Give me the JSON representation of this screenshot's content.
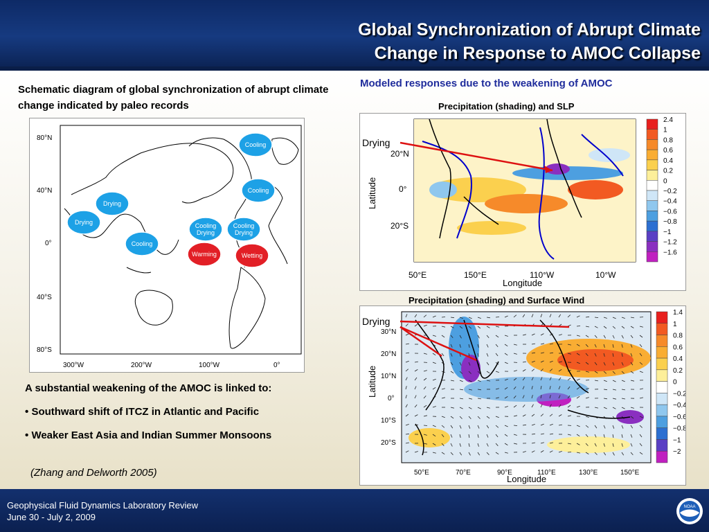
{
  "header": {
    "title_line1": "Global Synchronization of Abrupt Climate",
    "title_line2": "Change in Response to AMOC Collapse"
  },
  "left": {
    "heading": "Schematic diagram of global synchronization of abrupt climate change indicated by paleo records",
    "map": {
      "lat_labels": [
        "80°N",
        "40°N",
        "0°",
        "40°S",
        "80°S"
      ],
      "lon_labels": [
        "300°W",
        "200°W",
        "100°W",
        "0°"
      ],
      "bubbles": [
        {
          "label": "Cooling",
          "color": "#1da1e6"
        },
        {
          "label": "Cooling",
          "color": "#1da1e6"
        },
        {
          "label": "Drying",
          "color": "#1da1e6"
        },
        {
          "label": "Drying",
          "color": "#1da1e6"
        },
        {
          "label": "Cooling",
          "color": "#1da1e6"
        },
        {
          "label": "Cooling Drying",
          "color": "#1da1e6"
        },
        {
          "label": "Cooling Drying",
          "color": "#1da1e6"
        },
        {
          "label": "Warming",
          "color": "#e21f26"
        },
        {
          "label": "Wetting",
          "color": "#e21f26"
        }
      ]
    }
  },
  "right": {
    "heading": "Modeled responses due to the weakening of AMOC",
    "panel1": {
      "title": "Precipitation (shading) and SLP",
      "annotation": "Drying",
      "ylabel": "Latitude",
      "xlabel": "Longitude",
      "lat_labels": [
        "20°N",
        "0°",
        "20°S"
      ],
      "lon_labels": [
        "50°E",
        "150°E",
        "110°W",
        "10°W"
      ],
      "colorbar": [
        {
          "label": "2.4",
          "color": "#e8201e"
        },
        {
          "label": "1",
          "color": "#f25a22"
        },
        {
          "label": "0.8",
          "color": "#f68a2a"
        },
        {
          "label": "0.6",
          "color": "#f9ad33"
        },
        {
          "label": "0.4",
          "color": "#fbd04e"
        },
        {
          "label": "0.2",
          "color": "#fdef9a"
        },
        {
          "label": "0",
          "color": "#ffffff"
        },
        {
          "label": "−0.2",
          "color": "#cfe6f7"
        },
        {
          "label": "−0.4",
          "color": "#8fc7ee"
        },
        {
          "label": "−0.6",
          "color": "#4d9fe0"
        },
        {
          "label": "−0.8",
          "color": "#2c6fd1"
        },
        {
          "label": "−1",
          "color": "#5a3fc4"
        },
        {
          "label": "−1.2",
          "color": "#8a2fc0"
        },
        {
          "label": "−1.6",
          "color": "#c020c0"
        }
      ]
    },
    "panel2": {
      "title": "Precipitation (shading) and Surface Wind",
      "annotation": "Drying",
      "ylabel": "Latitude",
      "xlabel": "Longitude",
      "lat_labels": [
        "30°N",
        "20°N",
        "10°N",
        "0°",
        "10°S",
        "20°S"
      ],
      "lon_labels": [
        "50°E",
        "70°E",
        "90°E",
        "110°E",
        "130°E",
        "150°E"
      ],
      "colorbar": [
        {
          "label": "1.4",
          "color": "#e8201e"
        },
        {
          "label": "1",
          "color": "#f25a22"
        },
        {
          "label": "0.8",
          "color": "#f68a2a"
        },
        {
          "label": "0.6",
          "color": "#f9ad33"
        },
        {
          "label": "0.4",
          "color": "#fbd04e"
        },
        {
          "label": "0.2",
          "color": "#fdef9a"
        },
        {
          "label": "0",
          "color": "#ffffff"
        },
        {
          "label": "−0.2",
          "color": "#cfe6f7"
        },
        {
          "label": "−0.4",
          "color": "#8fc7ee"
        },
        {
          "label": "−0.6",
          "color": "#4d9fe0"
        },
        {
          "label": "−0.8",
          "color": "#2c6fd1"
        },
        {
          "label": "−1",
          "color": "#5a3fc4"
        },
        {
          "label": "−2",
          "color": "#c020c0"
        }
      ]
    }
  },
  "bullets": {
    "intro": "A substantial weakening of the AMOC is linked to:",
    "items": [
      "Southward shift of ITCZ in Atlantic and Pacific",
      "Weaker East Asia and Indian Summer Monsoons"
    ],
    "bullet_char": "•"
  },
  "citation": "(Zhang and Delworth 2005)",
  "footer": {
    "line1": "Geophysical Fluid Dynamics Laboratory Review",
    "line2": "June 30 - July 2, 2009",
    "logo_text": "NOAA"
  }
}
